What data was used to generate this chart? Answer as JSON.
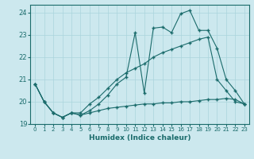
{
  "xlabel": "Humidex (Indice chaleur)",
  "bg_color": "#cce8ee",
  "line_color": "#1a6b6b",
  "xlim": [
    -0.5,
    23.5
  ],
  "ylim": [
    19.0,
    24.35
  ],
  "yticks": [
    19,
    20,
    21,
    22,
    23,
    24
  ],
  "xticks": [
    0,
    1,
    2,
    3,
    4,
    5,
    6,
    7,
    8,
    9,
    10,
    11,
    12,
    13,
    14,
    15,
    16,
    17,
    18,
    19,
    20,
    21,
    22,
    23
  ],
  "series1_x": [
    0,
    1,
    2,
    3,
    4,
    5,
    6,
    7,
    8,
    9,
    10,
    11,
    12,
    13,
    14,
    15,
    16,
    17,
    18,
    19,
    20,
    21,
    22,
    23
  ],
  "series1_y": [
    20.8,
    20.0,
    19.5,
    19.3,
    19.5,
    19.4,
    19.5,
    19.6,
    19.7,
    19.75,
    19.8,
    19.85,
    19.9,
    19.9,
    19.95,
    19.95,
    20.0,
    20.0,
    20.05,
    20.1,
    20.1,
    20.15,
    20.1,
    19.9
  ],
  "series2_x": [
    0,
    1,
    2,
    3,
    4,
    5,
    6,
    7,
    8,
    9,
    10,
    11,
    12,
    13,
    14,
    15,
    16,
    17,
    18,
    19,
    20,
    21,
    22,
    23
  ],
  "series2_y": [
    20.8,
    20.0,
    19.5,
    19.3,
    19.5,
    19.4,
    19.6,
    19.9,
    20.3,
    20.8,
    21.1,
    23.1,
    20.4,
    23.3,
    23.35,
    23.1,
    23.95,
    24.1,
    23.2,
    23.2,
    22.4,
    21.0,
    20.5,
    19.9
  ],
  "series3_x": [
    0,
    1,
    2,
    3,
    4,
    5,
    6,
    7,
    8,
    9,
    10,
    11,
    12,
    13,
    14,
    15,
    16,
    17,
    18,
    19,
    20,
    21,
    22,
    23
  ],
  "series3_y": [
    20.8,
    20.0,
    19.5,
    19.3,
    19.5,
    19.5,
    19.9,
    20.2,
    20.6,
    21.0,
    21.3,
    21.5,
    21.7,
    22.0,
    22.2,
    22.35,
    22.5,
    22.65,
    22.8,
    22.9,
    21.0,
    20.5,
    20.0,
    19.9
  ],
  "grid_color": "#aad4dc",
  "marker": "+",
  "markersize": 2.5,
  "linewidth": 0.8
}
